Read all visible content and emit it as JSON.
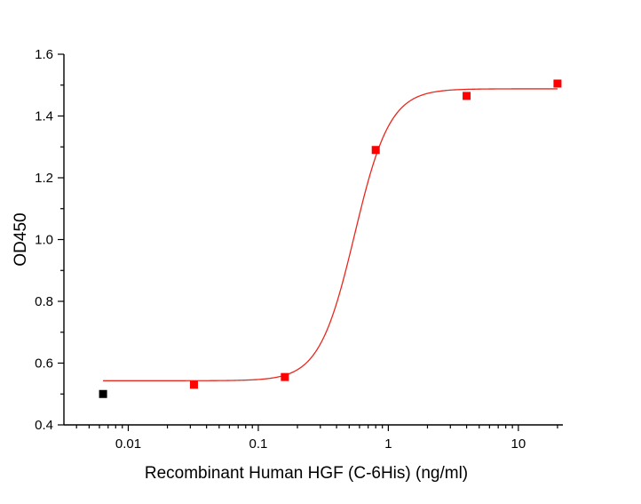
{
  "chart_data": {
    "type": "scatter",
    "xlabel": "Recombinant Human HGF (C-6His) (ng/ml)",
    "ylabel": "OD450",
    "x_scale": "log",
    "xlim": [
      0.0032,
      22
    ],
    "ylim": [
      0.4,
      1.6
    ],
    "x_major_ticks": [
      0.01,
      0.1,
      1,
      10
    ],
    "x_tick_labels": [
      "0.01",
      "0.1",
      "1",
      "10"
    ],
    "y_major_ticks": [
      0.4,
      0.6,
      0.8,
      1.0,
      1.2,
      1.4,
      1.6
    ],
    "y_tick_labels": [
      "0.4",
      "0.6",
      "0.8",
      "1.0",
      "1.2",
      "1.4",
      "1.6"
    ],
    "grid": false,
    "legend": "none",
    "series": [
      {
        "x": [
          0.0064,
          0.032,
          0.16,
          0.8,
          4,
          20
        ],
        "y": [
          0.5,
          0.53,
          0.555,
          1.29,
          1.465,
          1.505
        ],
        "point_colors": [
          "#000000",
          "#ff0000",
          "#ff0000",
          "#ff0000",
          "#ff0000",
          "#ff0000"
        ]
      }
    ],
    "fit_curve": {
      "model": "4PL",
      "bottom": 0.543,
      "top": 1.488,
      "ec50": 0.55,
      "hill": 3.2,
      "x_range": [
        0.0064,
        20
      ],
      "color": "#e8281e"
    }
  }
}
